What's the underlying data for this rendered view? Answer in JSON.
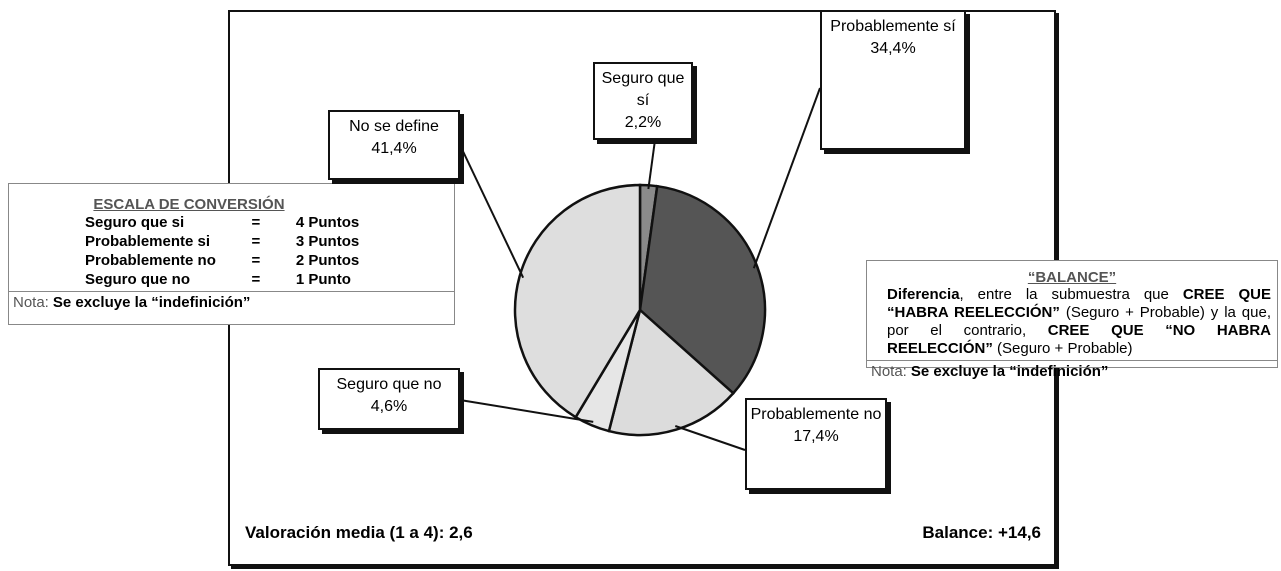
{
  "chart_data": {
    "type": "pie",
    "categories": [
      "Seguro que sí",
      "Probablemente sí",
      "Probablemente no",
      "Seguro que no",
      "No se define"
    ],
    "values": [
      2.2,
      34.4,
      17.4,
      4.6,
      41.4
    ],
    "value_labels": [
      "2,2%",
      "34,4%",
      "17,4%",
      "4,6%",
      "41,4%"
    ],
    "colors": [
      "#8a8a8a",
      "#555555",
      "#dcdcdc",
      "#e6e6e6",
      "#dedede"
    ],
    "footer_left": "Valoración media (1 a 4): 2,6",
    "footer_right": "Balance: +14,6"
  },
  "conversion_scale": {
    "title": "ESCALA DE CONVERSIÓN",
    "rows": [
      [
        "Seguro que si",
        "=",
        "4 Puntos"
      ],
      [
        "Probablemente si",
        "=",
        "3 Puntos"
      ],
      [
        "Probablemente no",
        "=",
        "2 Puntos"
      ],
      [
        "Seguro que no",
        "=",
        "1 Punto"
      ]
    ],
    "note": {
      "label": "Nota:",
      "text": "Se excluye la “indefinición”"
    }
  },
  "balance_box": {
    "title": "“BALANCE”",
    "parts": [
      {
        "text": "Diferencia",
        "bold": true
      },
      {
        "text": ", entre la submuestra que "
      },
      {
        "text": "CREE QUE “HABRA REELECCIÓN”",
        "bold": true
      },
      {
        "text": " (Seguro + Probable) y la que, por el contrario, "
      },
      {
        "text": "CREE QUE “NO HABRA REELECCIÓN”",
        "bold": true
      },
      {
        "text": " (Seguro + Probable)"
      }
    ],
    "note": {
      "label": "Nota:",
      "text": "Se excluye la “indefinición”"
    }
  }
}
